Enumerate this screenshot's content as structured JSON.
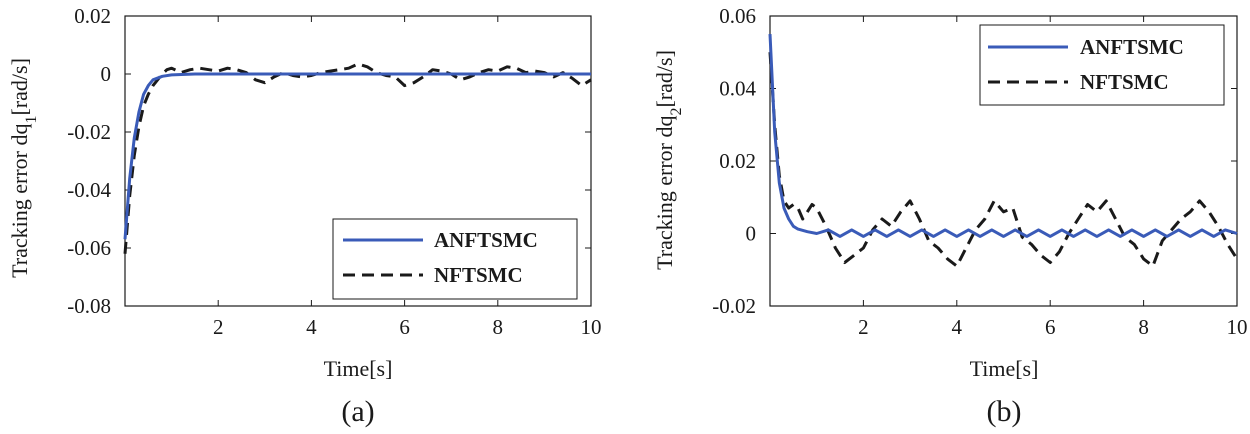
{
  "chart_data": [
    {
      "type": "line",
      "panel_label": "(a)",
      "xlabel": "Time[s]",
      "ylabel_main": "Tracking error dq",
      "ylabel_sub": "1",
      "ylabel_unit": "[rad/s]",
      "xlim": [
        0,
        10
      ],
      "ylim": [
        -0.08,
        0.02
      ],
      "xticks": [
        2,
        4,
        6,
        8,
        10
      ],
      "xtick_labels": [
        "2",
        "4",
        "6",
        "8",
        "10"
      ],
      "yticks": [
        -0.08,
        -0.06,
        -0.04,
        -0.02,
        0,
        0.02
      ],
      "ytick_labels": [
        "-0.08",
        "-0.06",
        "-0.04",
        "-0.02",
        "0",
        "0.02"
      ],
      "legend_position": "lower-right",
      "series": [
        {
          "name": "ANFTSMC",
          "color": "#3a5bb8",
          "style": "solid",
          "points": [
            [
              0,
              -0.057
            ],
            [
              0.1,
              -0.036
            ],
            [
              0.2,
              -0.022
            ],
            [
              0.3,
              -0.013
            ],
            [
              0.4,
              -0.007
            ],
            [
              0.5,
              -0.004
            ],
            [
              0.6,
              -0.002
            ],
            [
              0.8,
              -0.0008
            ],
            [
              1.0,
              -0.0003
            ],
            [
              1.5,
              0
            ],
            [
              2,
              0
            ],
            [
              3,
              0
            ],
            [
              4,
              0
            ],
            [
              5,
              0
            ],
            [
              6,
              0
            ],
            [
              7,
              0
            ],
            [
              8,
              0
            ],
            [
              9,
              0
            ],
            [
              10,
              0
            ]
          ]
        },
        {
          "name": "NFTSMC",
          "color": "#1a1a1a",
          "style": "dashed",
          "points": [
            [
              0,
              -0.062
            ],
            [
              0.1,
              -0.042
            ],
            [
              0.2,
              -0.028
            ],
            [
              0.3,
              -0.018
            ],
            [
              0.4,
              -0.011
            ],
            [
              0.5,
              -0.007
            ],
            [
              0.6,
              -0.004
            ],
            [
              0.7,
              -0.002
            ],
            [
              0.8,
              0.0
            ],
            [
              0.9,
              0.0015
            ],
            [
              1.0,
              0.002
            ],
            [
              1.2,
              0.0005
            ],
            [
              1.4,
              0.0015
            ],
            [
              1.6,
              0.002
            ],
            [
              1.8,
              0.0015
            ],
            [
              2.0,
              0.001
            ],
            [
              2.2,
              0.002
            ],
            [
              2.4,
              0.0015
            ],
            [
              2.6,
              0.0005
            ],
            [
              2.8,
              -0.002
            ],
            [
              3.0,
              -0.003
            ],
            [
              3.2,
              -0.001
            ],
            [
              3.4,
              0.0005
            ],
            [
              3.6,
              -0.0005
            ],
            [
              3.8,
              -0.001
            ],
            [
              4.0,
              -0.0005
            ],
            [
              4.2,
              0.0005
            ],
            [
              4.4,
              0.001
            ],
            [
              4.6,
              0.0015
            ],
            [
              4.8,
              0.002
            ],
            [
              5.0,
              0.0035
            ],
            [
              5.2,
              0.0025
            ],
            [
              5.4,
              0.0005
            ],
            [
              5.6,
              -0.0005
            ],
            [
              5.8,
              -0.001
            ],
            [
              6.0,
              -0.004
            ],
            [
              6.2,
              -0.003
            ],
            [
              6.4,
              -0.001
            ],
            [
              6.6,
              0.0015
            ],
            [
              6.8,
              0.001
            ],
            [
              7.0,
              0.0
            ],
            [
              7.2,
              -0.002
            ],
            [
              7.4,
              -0.001
            ],
            [
              7.6,
              0.0005
            ],
            [
              7.8,
              0.0015
            ],
            [
              8.0,
              0.001
            ],
            [
              8.2,
              0.0025
            ],
            [
              8.4,
              0.002
            ],
            [
              8.6,
              0.0005
            ],
            [
              8.8,
              0.001
            ],
            [
              9.0,
              0.0005
            ],
            [
              9.2,
              -0.001
            ],
            [
              9.4,
              0.0005
            ],
            [
              9.6,
              -0.0015
            ],
            [
              9.8,
              -0.004
            ],
            [
              10,
              -0.002
            ]
          ]
        }
      ]
    },
    {
      "type": "line",
      "panel_label": "(b)",
      "xlabel": "Time[s]",
      "ylabel_main": "Tracking error dq",
      "ylabel_sub": "2",
      "ylabel_unit": "[rad/s]",
      "xlim": [
        0,
        10
      ],
      "ylim": [
        -0.02,
        0.06
      ],
      "xticks": [
        2,
        4,
        6,
        8,
        10
      ],
      "xtick_labels": [
        "2",
        "4",
        "6",
        "8",
        "10"
      ],
      "yticks": [
        -0.02,
        0,
        0.02,
        0.04,
        0.06
      ],
      "ytick_labels": [
        "-0.02",
        "0",
        "0.02",
        "0.04",
        "0.06"
      ],
      "legend_position": "top-right",
      "series": [
        {
          "name": "ANFTSMC",
          "color": "#3a5bb8",
          "style": "solid",
          "points": [
            [
              0,
              0.055
            ],
            [
              0.1,
              0.028
            ],
            [
              0.2,
              0.014
            ],
            [
              0.3,
              0.007
            ],
            [
              0.4,
              0.004
            ],
            [
              0.5,
              0.002
            ],
            [
              0.6,
              0.0012
            ],
            [
              0.8,
              0.0005
            ],
            [
              1.0,
              0.0
            ],
            [
              1.25,
              0.001
            ],
            [
              1.5,
              -0.0008
            ],
            [
              1.75,
              0.001
            ],
            [
              2.0,
              -0.0008
            ],
            [
              2.25,
              0.001
            ],
            [
              2.5,
              -0.0008
            ],
            [
              2.75,
              0.001
            ],
            [
              3.0,
              -0.0008
            ],
            [
              3.25,
              0.001
            ],
            [
              3.5,
              -0.0008
            ],
            [
              3.75,
              0.001
            ],
            [
              4.0,
              -0.0008
            ],
            [
              4.25,
              0.001
            ],
            [
              4.5,
              -0.0008
            ],
            [
              4.75,
              0.001
            ],
            [
              5.0,
              -0.0008
            ],
            [
              5.25,
              0.001
            ],
            [
              5.5,
              -0.0008
            ],
            [
              5.75,
              0.001
            ],
            [
              6.0,
              -0.0008
            ],
            [
              6.25,
              0.001
            ],
            [
              6.5,
              -0.0008
            ],
            [
              6.75,
              0.001
            ],
            [
              7.0,
              -0.0008
            ],
            [
              7.25,
              0.001
            ],
            [
              7.5,
              -0.0008
            ],
            [
              7.75,
              0.001
            ],
            [
              8.0,
              -0.0008
            ],
            [
              8.25,
              0.001
            ],
            [
              8.5,
              -0.0008
            ],
            [
              8.75,
              0.001
            ],
            [
              9.0,
              -0.0008
            ],
            [
              9.25,
              0.001
            ],
            [
              9.5,
              -0.0008
            ],
            [
              9.75,
              0.001
            ],
            [
              10,
              0.0
            ]
          ]
        },
        {
          "name": "NFTSMC",
          "color": "#1a1a1a",
          "style": "dashed",
          "points": [
            [
              0,
              0.05
            ],
            [
              0.1,
              0.03
            ],
            [
              0.2,
              0.016
            ],
            [
              0.3,
              0.009
            ],
            [
              0.4,
              0.007
            ],
            [
              0.5,
              0.008
            ],
            [
              0.6,
              0.007
            ],
            [
              0.7,
              0.004
            ],
            [
              0.8,
              0.006
            ],
            [
              0.9,
              0.008
            ],
            [
              1.0,
              0.007
            ],
            [
              1.2,
              0.002
            ],
            [
              1.4,
              -0.004
            ],
            [
              1.6,
              -0.008
            ],
            [
              1.8,
              -0.006
            ],
            [
              2.0,
              -0.004
            ],
            [
              2.2,
              0.001
            ],
            [
              2.4,
              0.004
            ],
            [
              2.6,
              0.002
            ],
            [
              2.8,
              0.006
            ],
            [
              3.0,
              0.009
            ],
            [
              3.2,
              0.004
            ],
            [
              3.4,
              -0.002
            ],
            [
              3.6,
              -0.004
            ],
            [
              3.8,
              -0.007
            ],
            [
              4.0,
              -0.009
            ],
            [
              4.2,
              -0.004
            ],
            [
              4.4,
              0.001
            ],
            [
              4.6,
              0.004
            ],
            [
              4.8,
              0.009
            ],
            [
              5.0,
              0.006
            ],
            [
              5.2,
              0.007
            ],
            [
              5.4,
              -0.001
            ],
            [
              5.6,
              -0.003
            ],
            [
              5.8,
              -0.006
            ],
            [
              6.0,
              -0.008
            ],
            [
              6.2,
              -0.005
            ],
            [
              6.4,
              0.0
            ],
            [
              6.6,
              0.004
            ],
            [
              6.8,
              0.008
            ],
            [
              7.0,
              0.006
            ],
            [
              7.2,
              0.009
            ],
            [
              7.4,
              0.004
            ],
            [
              7.6,
              -0.001
            ],
            [
              7.8,
              -0.003
            ],
            [
              8.0,
              -0.007
            ],
            [
              8.2,
              -0.009
            ],
            [
              8.4,
              -0.002
            ],
            [
              8.6,
              0.001
            ],
            [
              8.8,
              0.004
            ],
            [
              9.0,
              0.006
            ],
            [
              9.2,
              0.009
            ],
            [
              9.4,
              0.006
            ],
            [
              9.6,
              0.002
            ],
            [
              9.8,
              -0.003
            ],
            [
              10,
              -0.007
            ]
          ]
        }
      ]
    }
  ]
}
